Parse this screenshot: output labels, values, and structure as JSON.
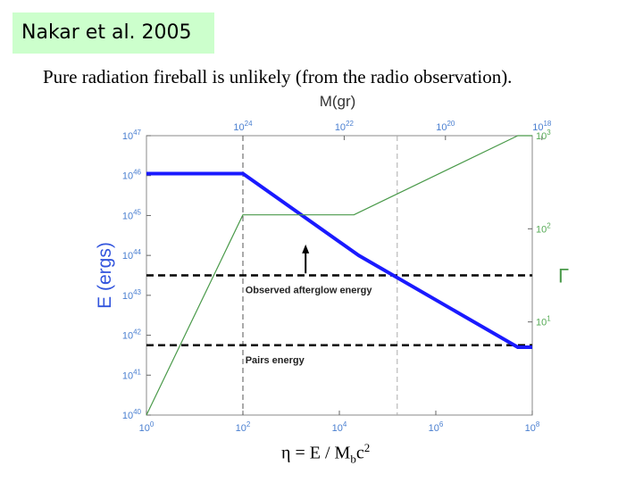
{
  "header": {
    "tag": "Nakar et al. 2005",
    "subtitle": "Pure radiation fireball is unlikely (from the radio observation)."
  },
  "formula": {
    "eta": "η",
    "eq": " = E / M",
    "sub": "b",
    "c": "c",
    "sup": "2"
  },
  "chart_data": {
    "type": "line",
    "title": "",
    "xlabel": "η = E / Mbc2",
    "ylabel": "E (ergs)",
    "y2label": "Γ",
    "top_axis_label": "M(gr)",
    "x_scale": "log",
    "xlim": [
      1,
      100000000
    ],
    "ylim": [
      1e+40,
      1e+47
    ],
    "y2lim": [
      1,
      1000
    ],
    "x_ticks": [
      {
        "mant": "10",
        "exp": "0",
        "value": 1
      },
      {
        "mant": "10",
        "exp": "2",
        "value": 100
      },
      {
        "mant": "10",
        "exp": "4",
        "value": 10000
      },
      {
        "mant": "10",
        "exp": "6",
        "value": 1000000
      },
      {
        "mant": "10",
        "exp": "8",
        "value": 100000000
      }
    ],
    "y_ticks": [
      {
        "mant": "10",
        "exp": "40",
        "value": 40
      },
      {
        "mant": "10",
        "exp": "41",
        "value": 41
      },
      {
        "mant": "10",
        "exp": "42",
        "value": 42
      },
      {
        "mant": "10",
        "exp": "43",
        "value": 43
      },
      {
        "mant": "10",
        "exp": "44",
        "value": 44
      },
      {
        "mant": "10",
        "exp": "45",
        "value": 45
      },
      {
        "mant": "10",
        "exp": "46",
        "value": 46
      },
      {
        "mant": "10",
        "exp": "47",
        "value": 47
      }
    ],
    "y2_ticks": [
      {
        "mant": "10",
        "exp": "1",
        "value": 1
      },
      {
        "mant": "10",
        "exp": "2",
        "value": 2
      },
      {
        "mant": "10",
        "exp": "3",
        "value": 3
      }
    ],
    "top_ticks": [
      {
        "mant": "10",
        "exp": "24",
        "xvalue": 2
      },
      {
        "mant": "10",
        "exp": "22",
        "xvalue": 4.1
      },
      {
        "mant": "10",
        "exp": "20",
        "xvalue": 6.2
      },
      {
        "mant": "10",
        "exp": "18",
        "xvalue": 8.2
      }
    ],
    "series": [
      {
        "name": "E (ergs)",
        "axis": "left",
        "color": "#1a1aff",
        "log10_x": [
          0,
          2,
          4.4,
          7.7,
          8
        ],
        "log10_y": [
          46.05,
          46.05,
          44.0,
          41.7,
          41.7
        ]
      },
      {
        "name": "Γ",
        "axis": "right",
        "color": "#4a9a4a",
        "log10_x": [
          0,
          2,
          4.3,
          7.7,
          8
        ],
        "log10_y": [
          0.0,
          2.15,
          2.15,
          3.0,
          3.0
        ]
      }
    ],
    "hlines": [
      {
        "label": "Observed afterglow energy",
        "log10_y": 43.5,
        "style": "dashed"
      },
      {
        "label": "Pairs energy",
        "log10_y": 41.75,
        "style": "dashed"
      }
    ],
    "vlines": [
      {
        "log10_x": 2,
        "color": "#555555"
      },
      {
        "log10_x": 5.2,
        "color": "#aaaaaa"
      }
    ],
    "colors": {
      "axis_label": "#3355dd",
      "tick_label": "#4a7fd0",
      "right_tick_label": "#55aa55",
      "axis_frame": "#888888"
    }
  }
}
